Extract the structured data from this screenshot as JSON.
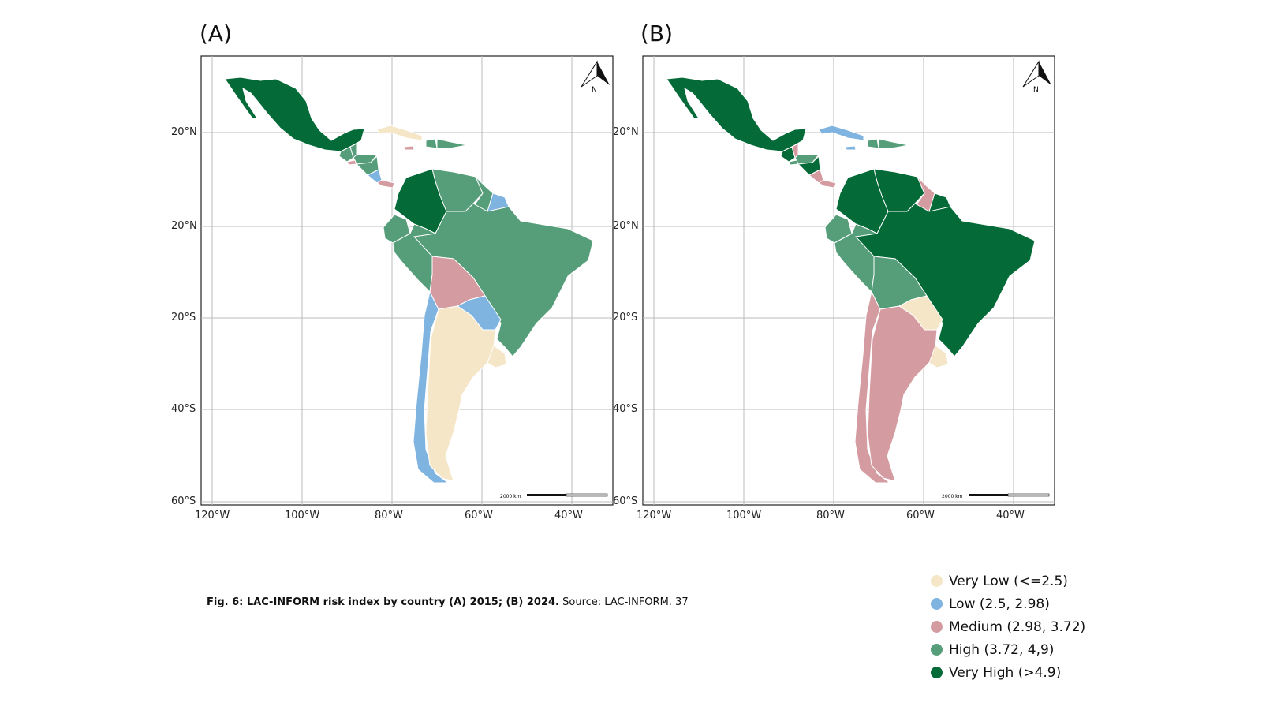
{
  "panels": [
    {
      "label": "(A)",
      "year": "2015",
      "risk": {
        "mexico": "very_high",
        "guatemala": "high",
        "belize": "high",
        "honduras": "high",
        "elsalvador": "medium",
        "nicaragua": "high",
        "costarica": "low",
        "panama": "medium",
        "cuba": "very_low",
        "jamaica": "medium",
        "haiti": "high",
        "dominican": "high",
        "colombia": "very_high",
        "venezuela": "high",
        "guyana": "high",
        "frguiana": "low",
        "ecuador": "high",
        "peru": "high",
        "brazil": "high",
        "bolivia": "medium",
        "paraguay": "low",
        "chile": "low",
        "argentina": "very_low",
        "uruguay": "very_low"
      }
    },
    {
      "label": "(B)",
      "year": "2024",
      "risk": {
        "mexico": "very_high",
        "guatemala": "very_high",
        "belize": "medium",
        "honduras": "high",
        "elsalvador": "high",
        "nicaragua": "very_high",
        "costarica": "medium",
        "panama": "medium",
        "cuba": "low",
        "jamaica": "low",
        "haiti": "high",
        "dominican": "high",
        "colombia": "very_high",
        "venezuela": "very_high",
        "guyana": "medium",
        "frguiana": "very_high",
        "ecuador": "high",
        "peru": "high",
        "brazil": "very_high",
        "bolivia": "high",
        "paraguay": "very_low",
        "chile": "medium",
        "argentina": "medium",
        "uruguay": "very_low"
      }
    }
  ],
  "lat_labels": [
    "20°N",
    "20°N",
    "20°S",
    "40°S",
    "60°S"
  ],
  "lon_labels": [
    "120°W",
    "100°W",
    "80°W",
    "60°W",
    "40°W"
  ],
  "north_label": "N",
  "scale_label": "2000 km",
  "caption": {
    "bold": "Fig. 6: LAC-INFORM risk index by country (A) 2015; (B) 2024.",
    "source": " Source: LAC-INFORM. 37"
  },
  "legend": [
    {
      "key": "very_low",
      "label": "Very Low (<=2.5)",
      "color": "#f5e6c8"
    },
    {
      "key": "low",
      "label": "Low (2.5, 2.98)",
      "color": "#7fb3e0"
    },
    {
      "key": "medium",
      "label": "Medium (2.98, 3.72)",
      "color": "#d49ba1"
    },
    {
      "key": "high",
      "label": "High (3.72, 4,9)",
      "color": "#559e79"
    },
    {
      "key": "very_high",
      "label": "Very High (>4.9)",
      "color": "#046a38"
    }
  ]
}
